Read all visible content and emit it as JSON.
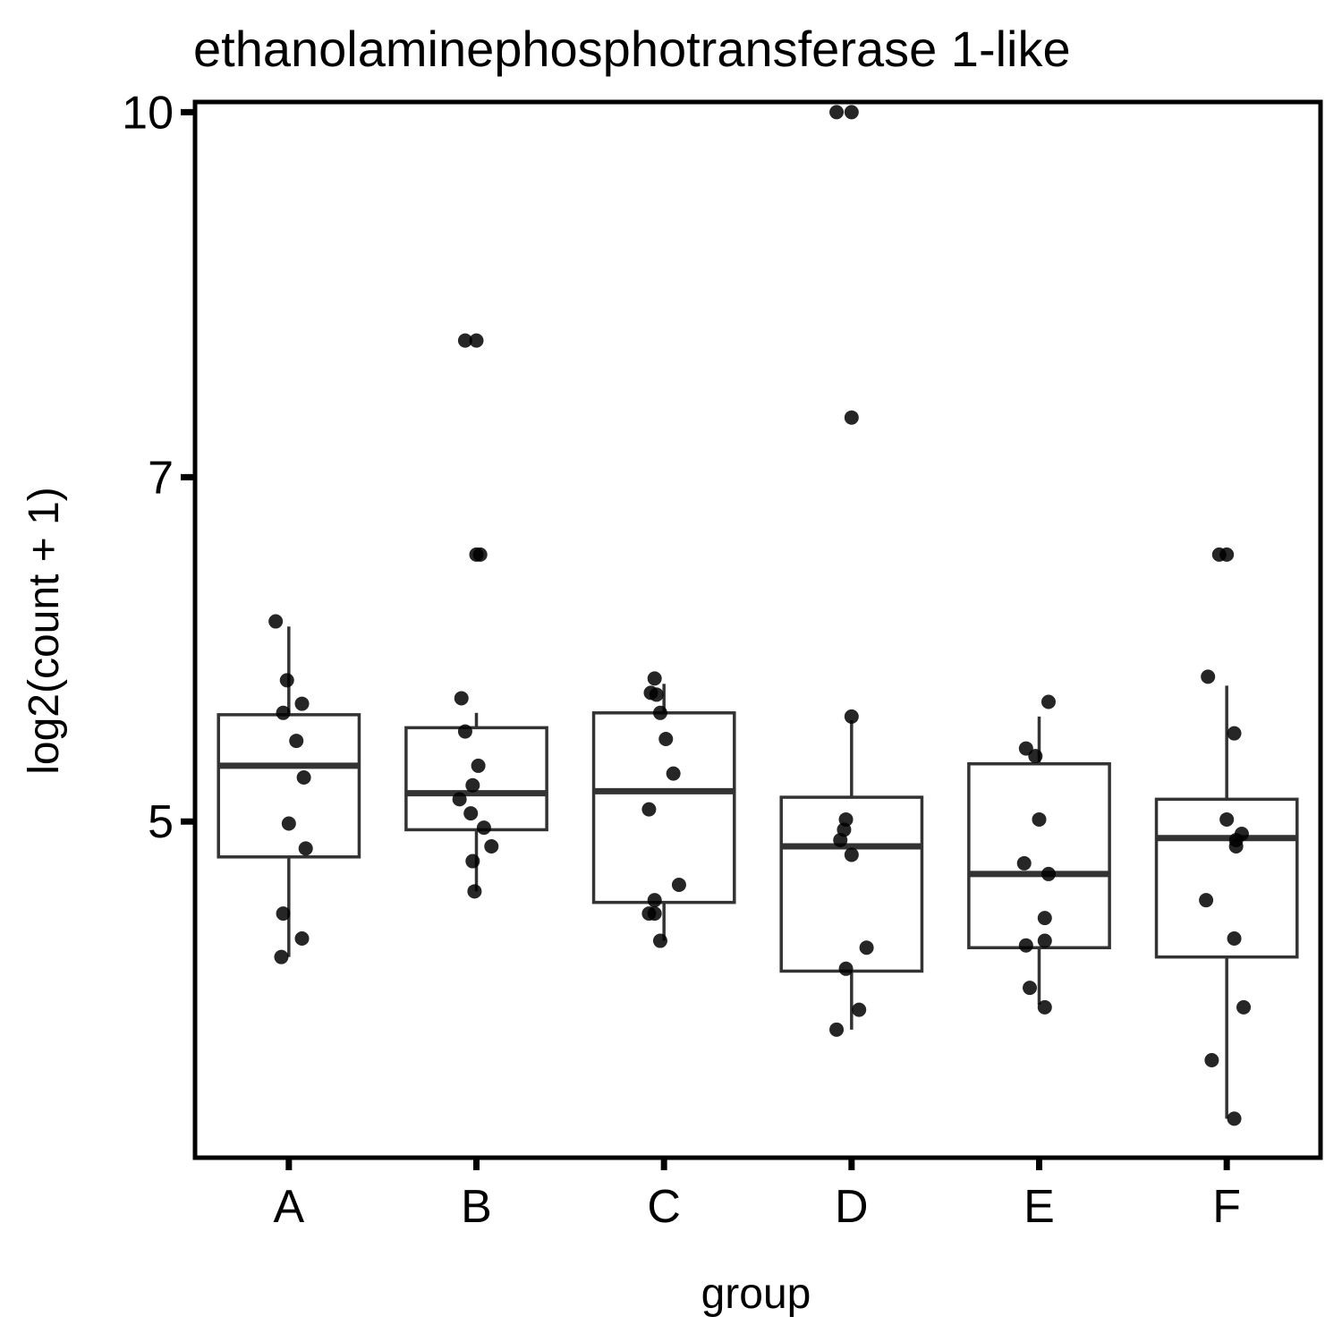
{
  "chart_data": {
    "type": "box",
    "title": "ethanolaminephosphotransferase 1-like",
    "xlabel": "group",
    "ylabel": "log2(count + 1)",
    "y_ticks": [
      5,
      7,
      10
    ],
    "y_scale": "log2",
    "ylim": [
      3.6,
      10.1
    ],
    "grid": false,
    "legend": "none",
    "categories": [
      "A",
      "B",
      "C",
      "D",
      "E",
      "F"
    ],
    "boxes": [
      {
        "group": "A",
        "lower_whisker": 4.38,
        "q1": 4.83,
        "median": 5.28,
        "q3": 5.55,
        "upper_whisker": 6.05
      },
      {
        "group": "B",
        "lower_whisker": 4.67,
        "q1": 4.96,
        "median": 5.14,
        "q3": 5.48,
        "upper_whisker": 5.56
      },
      {
        "group": "C",
        "lower_whisker": 4.45,
        "q1": 4.62,
        "median": 5.15,
        "q3": 5.56,
        "upper_whisker": 5.72
      },
      {
        "group": "D",
        "lower_whisker": 4.08,
        "q1": 4.32,
        "median": 4.88,
        "q3": 5.12,
        "upper_whisker": 5.52
      },
      {
        "group": "E",
        "lower_whisker": 4.18,
        "q1": 4.42,
        "median": 4.75,
        "q3": 5.29,
        "upper_whisker": 5.54
      },
      {
        "group": "F",
        "lower_whisker": 3.74,
        "q1": 4.38,
        "median": 4.92,
        "q3": 5.11,
        "upper_whisker": 5.71
      }
    ],
    "points": [
      {
        "group": "A",
        "y": 6.08,
        "jitter": -0.07
      },
      {
        "group": "A",
        "y": 5.74,
        "jitter": -0.01
      },
      {
        "group": "A",
        "y": 5.61,
        "jitter": 0.07
      },
      {
        "group": "A",
        "y": 5.56,
        "jitter": -0.03
      },
      {
        "group": "A",
        "y": 5.41,
        "jitter": 0.04
      },
      {
        "group": "A",
        "y": 5.22,
        "jitter": 0.08
      },
      {
        "group": "A",
        "y": 4.99,
        "jitter": 0.0
      },
      {
        "group": "A",
        "y": 4.87,
        "jitter": 0.09
      },
      {
        "group": "A",
        "y": 4.57,
        "jitter": -0.03
      },
      {
        "group": "A",
        "y": 4.46,
        "jitter": 0.07
      },
      {
        "group": "A",
        "y": 4.38,
        "jitter": -0.04
      },
      {
        "group": "B",
        "y": 8.0,
        "jitter": -0.06
      },
      {
        "group": "B",
        "y": 8.0,
        "jitter": 0.0
      },
      {
        "group": "B",
        "y": 6.49,
        "jitter": 0.0
      },
      {
        "group": "B",
        "y": 6.49,
        "jitter": 0.02
      },
      {
        "group": "B",
        "y": 5.64,
        "jitter": -0.08
      },
      {
        "group": "B",
        "y": 5.46,
        "jitter": -0.06
      },
      {
        "group": "B",
        "y": 5.28,
        "jitter": 0.01
      },
      {
        "group": "B",
        "y": 5.18,
        "jitter": -0.02
      },
      {
        "group": "B",
        "y": 5.11,
        "jitter": -0.09
      },
      {
        "group": "B",
        "y": 5.04,
        "jitter": -0.03
      },
      {
        "group": "B",
        "y": 4.97,
        "jitter": 0.04
      },
      {
        "group": "B",
        "y": 4.88,
        "jitter": 0.08
      },
      {
        "group": "B",
        "y": 4.81,
        "jitter": -0.02
      },
      {
        "group": "B",
        "y": 4.67,
        "jitter": -0.01
      },
      {
        "group": "C",
        "y": 5.75,
        "jitter": -0.05
      },
      {
        "group": "C",
        "y": 5.67,
        "jitter": -0.07
      },
      {
        "group": "C",
        "y": 5.66,
        "jitter": -0.04
      },
      {
        "group": "C",
        "y": 5.56,
        "jitter": -0.02
      },
      {
        "group": "C",
        "y": 5.42,
        "jitter": 0.01
      },
      {
        "group": "C",
        "y": 5.24,
        "jitter": 0.05
      },
      {
        "group": "C",
        "y": 5.06,
        "jitter": -0.08
      },
      {
        "group": "C",
        "y": 4.7,
        "jitter": 0.08
      },
      {
        "group": "C",
        "y": 4.63,
        "jitter": -0.05
      },
      {
        "group": "C",
        "y": 4.57,
        "jitter": -0.08
      },
      {
        "group": "C",
        "y": 4.57,
        "jitter": -0.05
      },
      {
        "group": "C",
        "y": 4.45,
        "jitter": -0.02
      },
      {
        "group": "D",
        "y": 10.0,
        "jitter": -0.08
      },
      {
        "group": "D",
        "y": 10.0,
        "jitter": 0.0
      },
      {
        "group": "D",
        "y": 7.42,
        "jitter": 0.0
      },
      {
        "group": "D",
        "y": 5.54,
        "jitter": 0.0
      },
      {
        "group": "D",
        "y": 5.01,
        "jitter": -0.03
      },
      {
        "group": "D",
        "y": 4.96,
        "jitter": -0.04
      },
      {
        "group": "D",
        "y": 4.91,
        "jitter": -0.06
      },
      {
        "group": "D",
        "y": 4.84,
        "jitter": 0.0
      },
      {
        "group": "D",
        "y": 4.42,
        "jitter": 0.08
      },
      {
        "group": "D",
        "y": 4.33,
        "jitter": -0.03
      },
      {
        "group": "D",
        "y": 4.16,
        "jitter": 0.04
      },
      {
        "group": "D",
        "y": 4.08,
        "jitter": -0.08
      },
      {
        "group": "E",
        "y": 5.62,
        "jitter": 0.05
      },
      {
        "group": "E",
        "y": 5.37,
        "jitter": -0.07
      },
      {
        "group": "E",
        "y": 5.33,
        "jitter": -0.02
      },
      {
        "group": "E",
        "y": 5.01,
        "jitter": 0.0
      },
      {
        "group": "E",
        "y": 4.8,
        "jitter": -0.08
      },
      {
        "group": "E",
        "y": 4.75,
        "jitter": 0.05
      },
      {
        "group": "E",
        "y": 4.55,
        "jitter": 0.03
      },
      {
        "group": "E",
        "y": 4.45,
        "jitter": 0.03
      },
      {
        "group": "E",
        "y": 4.43,
        "jitter": -0.07
      },
      {
        "group": "E",
        "y": 4.25,
        "jitter": -0.05
      },
      {
        "group": "E",
        "y": 4.17,
        "jitter": 0.03
      },
      {
        "group": "F",
        "y": 6.49,
        "jitter": -0.04
      },
      {
        "group": "F",
        "y": 6.49,
        "jitter": 0.0
      },
      {
        "group": "F",
        "y": 5.76,
        "jitter": -0.1
      },
      {
        "group": "F",
        "y": 5.45,
        "jitter": 0.04
      },
      {
        "group": "F",
        "y": 5.01,
        "jitter": 0.0
      },
      {
        "group": "F",
        "y": 4.94,
        "jitter": 0.08
      },
      {
        "group": "F",
        "y": 4.91,
        "jitter": 0.05
      },
      {
        "group": "F",
        "y": 4.88,
        "jitter": 0.05
      },
      {
        "group": "F",
        "y": 4.63,
        "jitter": -0.11
      },
      {
        "group": "F",
        "y": 4.46,
        "jitter": 0.04
      },
      {
        "group": "F",
        "y": 4.17,
        "jitter": 0.09
      },
      {
        "group": "F",
        "y": 3.96,
        "jitter": -0.08
      },
      {
        "group": "F",
        "y": 3.74,
        "jitter": 0.04
      }
    ]
  }
}
